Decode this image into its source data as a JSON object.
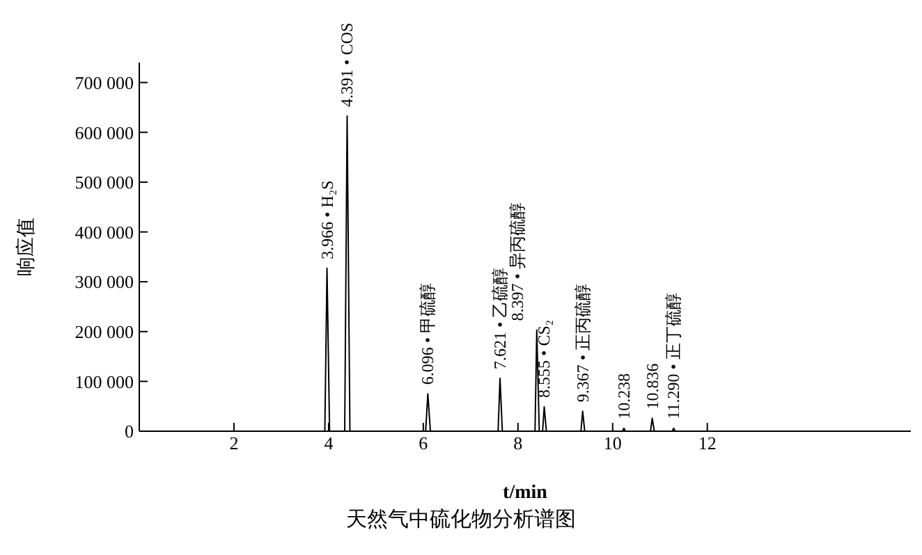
{
  "chart_data": {
    "type": "line",
    "title": "天然气中硫化物分析谱图",
    "xlabel": "t/min",
    "ylabel": "响应值",
    "x": [
      0,
      3.92,
      3.966,
      4.02,
      4.34,
      4.391,
      4.45,
      6.05,
      6.096,
      6.15,
      7.58,
      7.621,
      7.67,
      8.36,
      8.397,
      8.45,
      8.52,
      8.555,
      8.6,
      9.33,
      9.367,
      9.41,
      10.21,
      10.238,
      10.27,
      10.8,
      10.836,
      10.88,
      11.26,
      11.29,
      11.32,
      16.3
    ],
    "values": [
      0,
      0,
      327000,
      0,
      0,
      633000,
      0,
      0,
      75000,
      0,
      0,
      106000,
      0,
      0,
      203000,
      0,
      0,
      49000,
      0,
      0,
      40000,
      0,
      0,
      6000,
      0,
      0,
      26000,
      0,
      0,
      6000,
      0,
      0
    ],
    "color": "#000000",
    "xlim": [
      0,
      16.3
    ],
    "xticks": [
      2,
      4,
      6,
      8,
      10,
      12
    ],
    "ylim": [
      0,
      740000
    ],
    "yticks": [
      0,
      {
        "value": 100000,
        "label": "100 000"
      },
      {
        "value": 200000,
        "label": "200 000"
      },
      {
        "value": 300000,
        "label": "300 000"
      },
      {
        "value": 400000,
        "label": "400 000"
      },
      {
        "value": 500000,
        "label": "500 000"
      },
      {
        "value": 600000,
        "label": "600 000"
      },
      {
        "value": 700000,
        "label": "700 000"
      }
    ],
    "grid": false,
    "legend": false,
    "marker": "none",
    "line_style": "solid",
    "annotations": [
      {
        "text": "3.966 • H₂S",
        "x": 3.966,
        "y": 327000
      },
      {
        "text": "4.391 • COS",
        "x": 4.391,
        "y": 633000
      },
      {
        "text": "6.096 • 甲硫醇",
        "x": 6.096,
        "y": 75000
      },
      {
        "text": "7.621 • 乙硫醇",
        "x": 7.621,
        "y": 106000
      },
      {
        "text": "8.397 • 异丙硫醇",
        "x": 8.397,
        "y": 203000
      },
      {
        "text": "8.555 • CS₂",
        "x": 8.555,
        "y": 49000
      },
      {
        "text": "9.367 • 正丙硫醇",
        "x": 9.367,
        "y": 40000
      },
      {
        "text": "10.238",
        "x": 10.238,
        "y": 6000
      },
      {
        "text": "10.836",
        "x": 10.836,
        "y": 26000
      },
      {
        "text": "11.290 • 正丁硫醇",
        "x": 11.29,
        "y": 6000
      }
    ]
  }
}
